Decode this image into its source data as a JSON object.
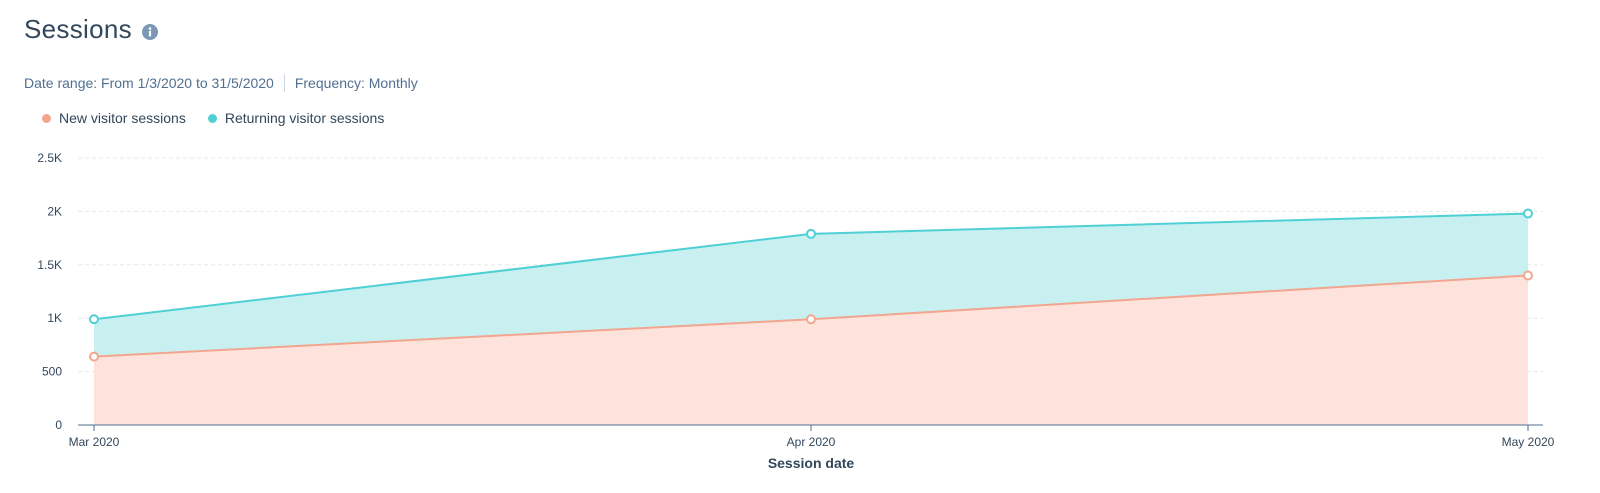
{
  "header": {
    "title": "Sessions",
    "info_icon": "info-icon"
  },
  "meta": {
    "date_range": "Date range: From 1/3/2020 to 31/5/2020",
    "frequency": "Frequency: Monthly"
  },
  "colors": {
    "new": "#f2a68f",
    "new_fill": "#fde3dc",
    "returning": "#4fd0d4",
    "returning_fill": "#c8f0f1",
    "grid": "#e5e8eb",
    "axis": "#516f90"
  },
  "chart_data": {
    "type": "area",
    "stacked": true,
    "categories": [
      "Mar 2020",
      "Apr 2020",
      "May 2020"
    ],
    "series": [
      {
        "name": "New visitor sessions",
        "values": [
          640,
          990,
          1400
        ]
      },
      {
        "name": "Returning visitor sessions",
        "values": [
          350,
          800,
          580
        ]
      }
    ],
    "xlabel": "Session date",
    "ylabel": "",
    "ylim": [
      0,
      2500
    ],
    "yticks": [
      0,
      500,
      1000,
      1500,
      2000,
      2500
    ],
    "ytick_labels": [
      "0",
      "500",
      "1K",
      "1.5K",
      "2K",
      "2.5K"
    ],
    "grid": true,
    "legend_position": "top-left"
  }
}
